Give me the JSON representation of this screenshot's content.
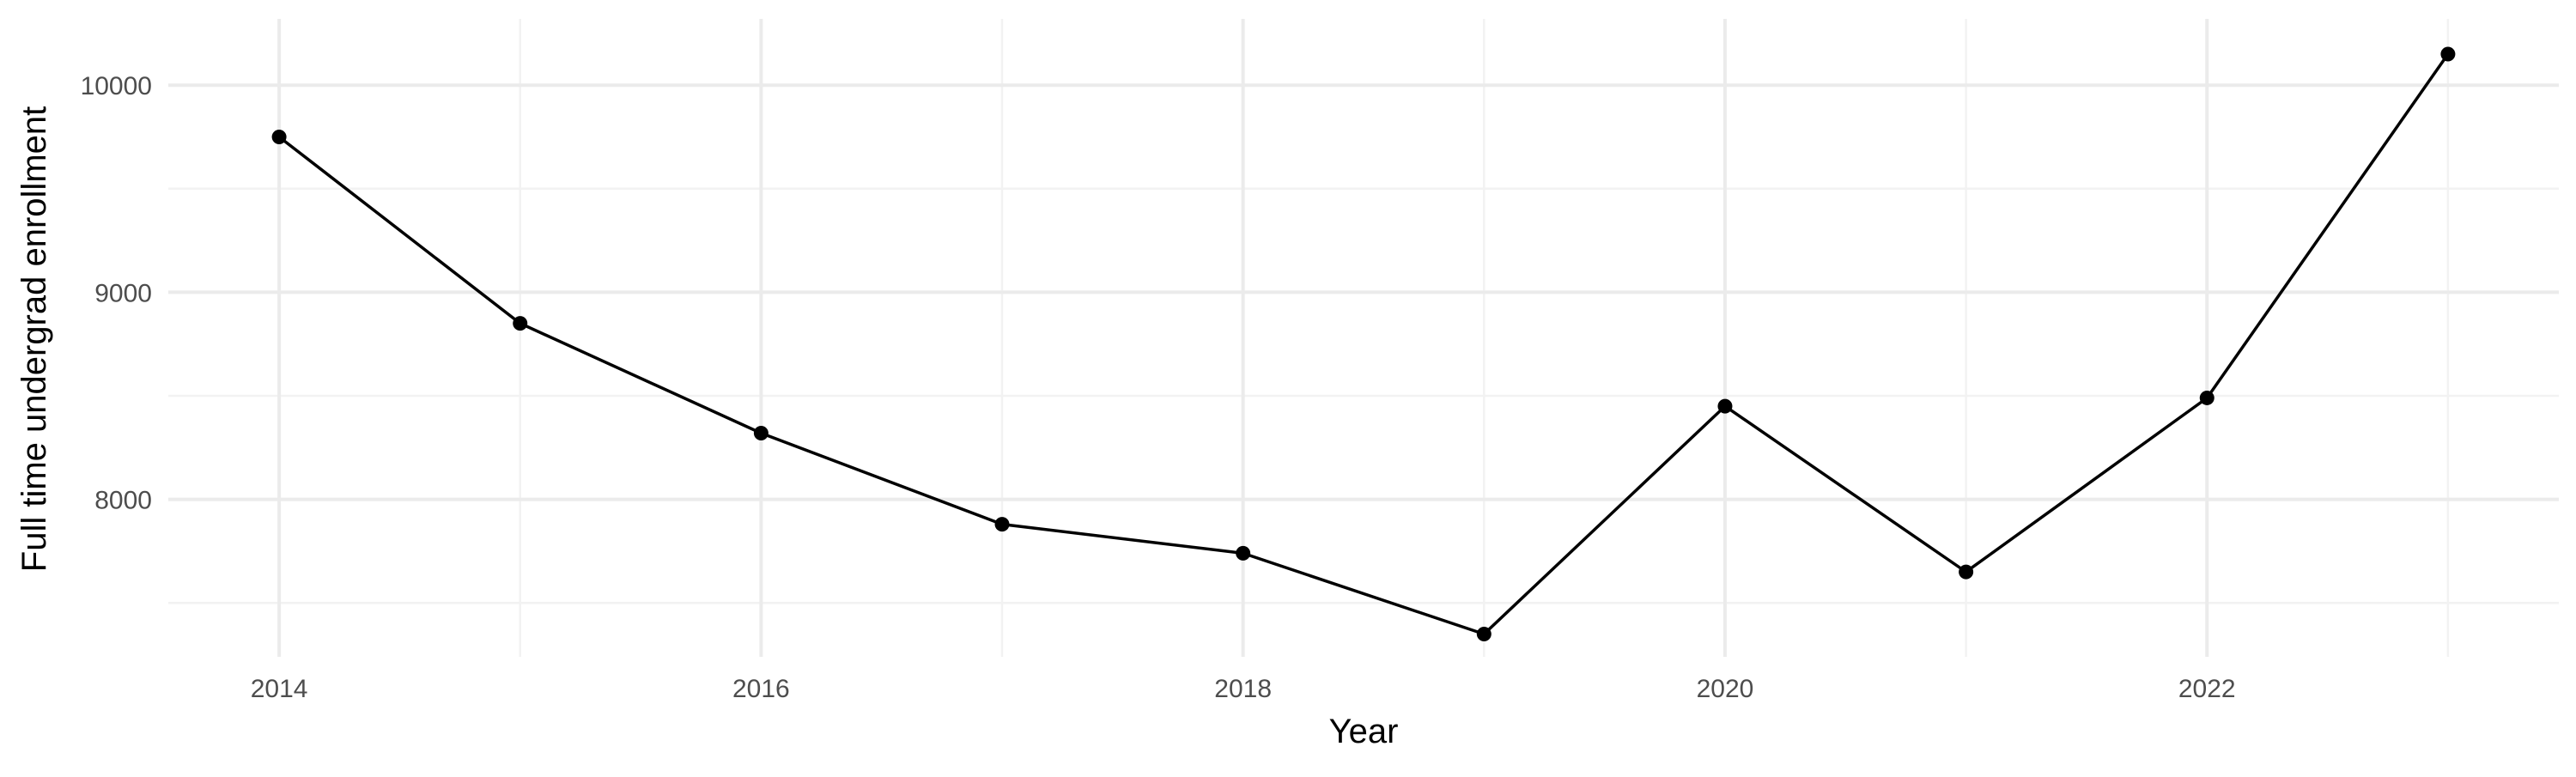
{
  "chart_data": {
    "type": "line",
    "title": "",
    "xlabel": "Year",
    "ylabel": "Full time undergrad enrollment",
    "x_ticks": [
      "2014",
      "2016",
      "2018",
      "2020",
      "2022"
    ],
    "y_ticks": [
      "8000",
      "9000",
      "10000"
    ],
    "xlim": [
      2013.54,
      2023.46
    ],
    "ylim": [
      7240,
      10320
    ],
    "grid": true,
    "legend": "none",
    "colors": {
      "line": "#000000",
      "points": "#000000",
      "grid_major": "#ebebeb",
      "grid_minor": "#f2f2f2",
      "tick_text": "#4d4d4d"
    },
    "series": [
      {
        "x": [
          2014,
          2015,
          2016,
          2017,
          2018,
          2019,
          2020,
          2021,
          2022,
          2023
        ],
        "y": [
          9750,
          8850,
          8320,
          7880,
          7740,
          7350,
          8450,
          7650,
          8490,
          10150
        ]
      }
    ]
  }
}
